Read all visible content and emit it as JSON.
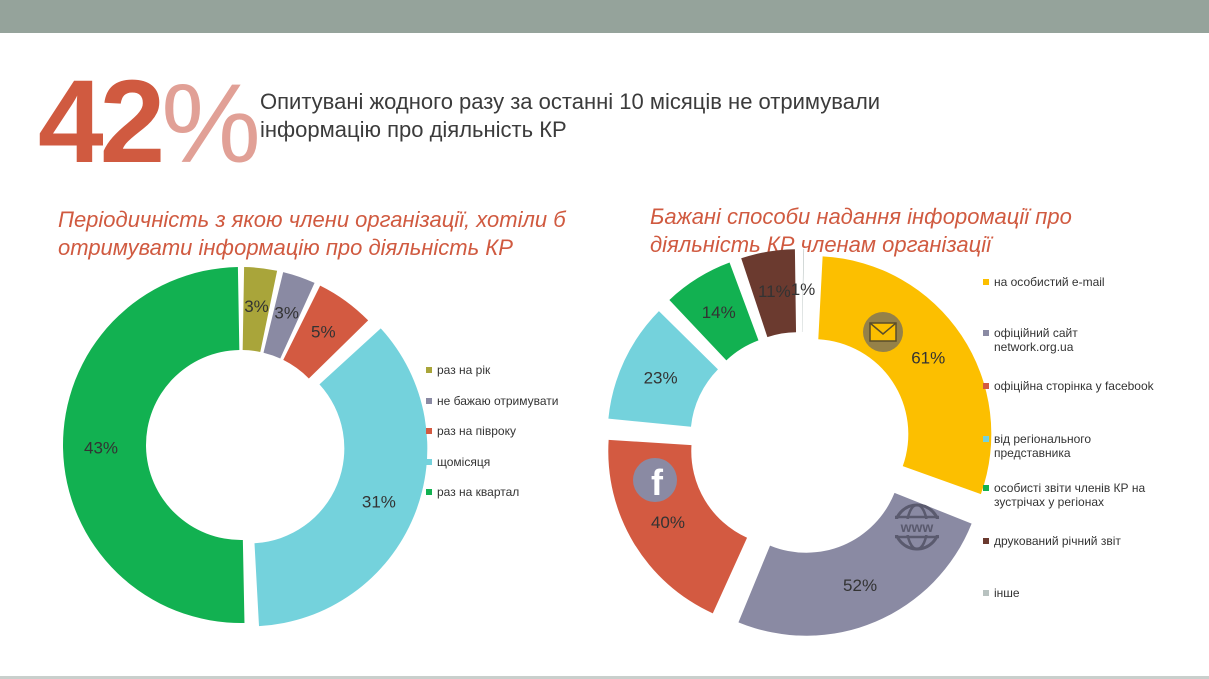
{
  "header": {
    "big_value": "42",
    "big_value_sign": "%",
    "headline": "Опитувані жодного разу за останні 10 місяців  не отримували інформацію про діяльність КР"
  },
  "colors": {
    "accent": "#d05a40",
    "top_bar": "#95a39b"
  },
  "chart_data": [
    {
      "type": "pie",
      "title": "Періодичність з якою члени організації, хотіли б отримувати інформацію про діяльність КР",
      "categories": [
        "раз на рік",
        "не бажаю отримувати",
        "раз на півроку",
        "щомісяця",
        "раз на квартал"
      ],
      "values": [
        3,
        3,
        5,
        31,
        43
      ],
      "value_labels": [
        "3%",
        "3%",
        "5%",
        "31%",
        "43%"
      ],
      "colors": [
        "#a9a53a",
        "#8a8aa3",
        "#d35a41",
        "#74d2dc",
        "#12b151"
      ],
      "legend_position": "right"
    },
    {
      "type": "pie",
      "title": "Бажані способи надання інфоромації  про діяльність КР членам організації",
      "categories": [
        "на особистий  e-mail",
        "офіційний  сайт network.org.ua",
        "офіційна  сторінка  у facebook",
        "від  регіонального представника",
        "особисті  звіти  членів  КР на  зустрічах  у  регіонах",
        "друкований  річний  звіт",
        "інше"
      ],
      "values": [
        61,
        52,
        40,
        23,
        14,
        11,
        1
      ],
      "value_labels": [
        "61%",
        "52%",
        "40%",
        "23%",
        "14%",
        "11%",
        "1%"
      ],
      "colors": [
        "#fcbf00",
        "#8a8aa3",
        "#d35a41",
        "#74d2dc",
        "#12b151",
        "#6b3a2f",
        "#b8c2c0"
      ],
      "legend_position": "right"
    }
  ],
  "icons": [
    "envelope-icon",
    "globe-www-icon",
    "facebook-icon"
  ]
}
